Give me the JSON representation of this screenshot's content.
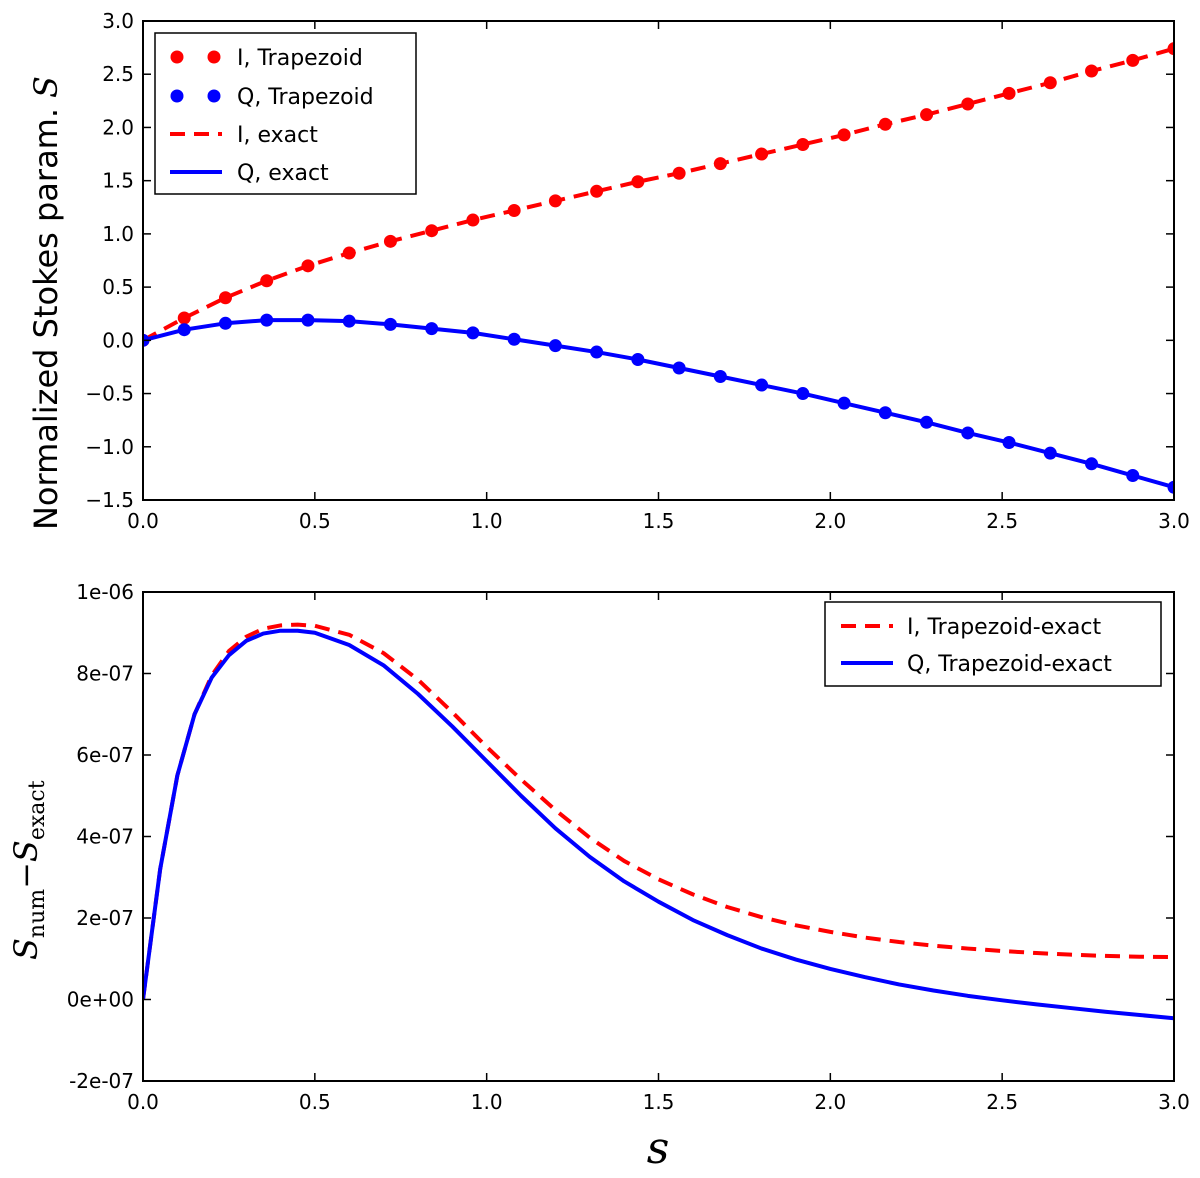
{
  "chart_data": [
    {
      "type": "line",
      "id": "top",
      "ylabel": "Normalized Stokes param. S",
      "ylabel_text": "Normalized Stokes param.",
      "ylabel_symbol": "S",
      "xlim": [
        0.0,
        3.0
      ],
      "ylim": [
        -1.5,
        3.0
      ],
      "x_ticks": [
        0.0,
        0.5,
        1.0,
        1.5,
        2.0,
        2.5,
        3.0
      ],
      "x_tick_labels": [
        "0.0",
        "0.5",
        "1.0",
        "1.5",
        "2.0",
        "2.5",
        "3.0"
      ],
      "y_ticks": [
        -1.5,
        -1.0,
        -0.5,
        0.0,
        0.5,
        1.0,
        1.5,
        2.0,
        2.5,
        3.0
      ],
      "y_tick_labels": [
        "−1.5",
        "−1.0",
        "−0.5",
        "0.0",
        "0.5",
        "1.0",
        "1.5",
        "2.0",
        "2.5",
        "3.0"
      ],
      "legend_position": "top-left",
      "series": [
        {
          "name": "I, Trapezoid",
          "style": "markers",
          "color": "#ff0000",
          "x": [
            0.0,
            0.12,
            0.24,
            0.36,
            0.48,
            0.6,
            0.72,
            0.84,
            0.96,
            1.08,
            1.2,
            1.32,
            1.44,
            1.56,
            1.68,
            1.8,
            1.92,
            2.04,
            2.16,
            2.28,
            2.4,
            2.52,
            2.64,
            2.76,
            2.88,
            3.0
          ],
          "values": [
            0.0,
            0.21,
            0.4,
            0.56,
            0.7,
            0.82,
            0.93,
            1.03,
            1.13,
            1.22,
            1.31,
            1.4,
            1.49,
            1.57,
            1.66,
            1.75,
            1.84,
            1.93,
            2.03,
            2.12,
            2.22,
            2.32,
            2.42,
            2.53,
            2.63,
            2.74
          ]
        },
        {
          "name": "Q, Trapezoid",
          "style": "markers",
          "color": "#0000ff",
          "x": [
            0.0,
            0.12,
            0.24,
            0.36,
            0.48,
            0.6,
            0.72,
            0.84,
            0.96,
            1.08,
            1.2,
            1.32,
            1.44,
            1.56,
            1.68,
            1.8,
            1.92,
            2.04,
            2.16,
            2.28,
            2.4,
            2.52,
            2.64,
            2.76,
            2.88,
            3.0
          ],
          "values": [
            0.0,
            0.1,
            0.16,
            0.19,
            0.19,
            0.18,
            0.15,
            0.11,
            0.07,
            0.01,
            -0.05,
            -0.11,
            -0.18,
            -0.26,
            -0.34,
            -0.42,
            -0.5,
            -0.59,
            -0.68,
            -0.77,
            -0.87,
            -0.96,
            -1.06,
            -1.16,
            -1.27,
            -1.38
          ]
        },
        {
          "name": "I, exact",
          "style": "dashed",
          "color": "#ff0000",
          "x": [
            0.0,
            0.12,
            0.24,
            0.36,
            0.48,
            0.6,
            0.72,
            0.84,
            0.96,
            1.08,
            1.2,
            1.32,
            1.44,
            1.56,
            1.68,
            1.8,
            1.92,
            2.04,
            2.16,
            2.28,
            2.4,
            2.52,
            2.64,
            2.76,
            2.88,
            3.0
          ],
          "values": [
            0.0,
            0.21,
            0.4,
            0.56,
            0.7,
            0.82,
            0.93,
            1.03,
            1.13,
            1.22,
            1.31,
            1.4,
            1.49,
            1.57,
            1.66,
            1.75,
            1.84,
            1.93,
            2.03,
            2.12,
            2.22,
            2.32,
            2.42,
            2.53,
            2.63,
            2.74
          ]
        },
        {
          "name": "Q, exact",
          "style": "solid",
          "color": "#0000ff",
          "x": [
            0.0,
            0.12,
            0.24,
            0.36,
            0.48,
            0.6,
            0.72,
            0.84,
            0.96,
            1.08,
            1.2,
            1.32,
            1.44,
            1.56,
            1.68,
            1.8,
            1.92,
            2.04,
            2.16,
            2.28,
            2.4,
            2.52,
            2.64,
            2.76,
            2.88,
            3.0
          ],
          "values": [
            0.0,
            0.1,
            0.16,
            0.19,
            0.19,
            0.18,
            0.15,
            0.11,
            0.07,
            0.01,
            -0.05,
            -0.11,
            -0.18,
            -0.26,
            -0.34,
            -0.42,
            -0.5,
            -0.59,
            -0.68,
            -0.77,
            -0.87,
            -0.96,
            -1.06,
            -1.16,
            -1.27,
            -1.38
          ]
        }
      ]
    },
    {
      "type": "line",
      "id": "bottom",
      "xlabel": "s",
      "ylabel_main": "S",
      "ylabel_sub1": "num",
      "ylabel_minus": "−",
      "ylabel_main2": "S",
      "ylabel_sub2": "exact",
      "xlim": [
        0.0,
        3.0
      ],
      "ylim": [
        -2e-07,
        1e-06
      ],
      "x_ticks": [
        0.0,
        0.5,
        1.0,
        1.5,
        2.0,
        2.5,
        3.0
      ],
      "x_tick_labels": [
        "0.0",
        "0.5",
        "1.0",
        "1.5",
        "2.0",
        "2.5",
        "3.0"
      ],
      "y_ticks": [
        -2e-07,
        0,
        2e-07,
        4e-07,
        6e-07,
        8e-07,
        1e-06
      ],
      "y_tick_labels": [
        "-2e-07",
        "0e+00",
        "2e-07",
        "4e-07",
        "6e-07",
        "8e-07",
        "1e-06"
      ],
      "legend_position": "top-right",
      "series": [
        {
          "name": "I, Trapezoid-exact",
          "style": "dashed",
          "color": "#ff0000",
          "x": [
            0.0,
            0.05,
            0.1,
            0.15,
            0.2,
            0.25,
            0.3,
            0.35,
            0.4,
            0.45,
            0.5,
            0.6,
            0.7,
            0.8,
            0.9,
            1.0,
            1.1,
            1.2,
            1.3,
            1.4,
            1.5,
            1.6,
            1.7,
            1.8,
            1.9,
            2.0,
            2.1,
            2.2,
            2.3,
            2.4,
            2.5,
            2.6,
            2.7,
            2.8,
            2.9,
            3.0
          ],
          "values": [
            0.0,
            3.2e-07,
            5.5e-07,
            7e-07,
            7.95e-07,
            8.55e-07,
            8.9e-07,
            9.1e-07,
            9.18e-07,
            9.2e-07,
            9.17e-07,
            8.95e-07,
            8.5e-07,
            7.85e-07,
            7.05e-07,
            6.2e-07,
            5.4e-07,
            4.65e-07,
            3.97e-07,
            3.4e-07,
            2.95e-07,
            2.58e-07,
            2.27e-07,
            2.02e-07,
            1.82e-07,
            1.66e-07,
            1.52e-07,
            1.41e-07,
            1.32e-07,
            1.25e-07,
            1.19e-07,
            1.14e-07,
            1.1e-07,
            1.07e-07,
            1.05e-07,
            1.04e-07
          ]
        },
        {
          "name": "Q, Trapezoid-exact",
          "style": "solid",
          "color": "#0000ff",
          "x": [
            0.0,
            0.05,
            0.1,
            0.15,
            0.2,
            0.25,
            0.3,
            0.35,
            0.4,
            0.45,
            0.5,
            0.6,
            0.7,
            0.8,
            0.9,
            1.0,
            1.1,
            1.2,
            1.3,
            1.4,
            1.5,
            1.6,
            1.7,
            1.8,
            1.9,
            2.0,
            2.1,
            2.2,
            2.3,
            2.4,
            2.5,
            2.6,
            2.7,
            2.8,
            2.9,
            3.0
          ],
          "values": [
            0.0,
            3.2e-07,
            5.5e-07,
            7e-07,
            7.9e-07,
            8.45e-07,
            8.8e-07,
            8.98e-07,
            9.05e-07,
            9.05e-07,
            9e-07,
            8.7e-07,
            8.2e-07,
            7.5e-07,
            6.7e-07,
            5.85e-07,
            5e-07,
            4.2e-07,
            3.5e-07,
            2.9e-07,
            2.4e-07,
            1.95e-07,
            1.58e-07,
            1.25e-07,
            9.8e-08,
            7.5e-08,
            5.5e-08,
            3.7e-08,
            2.2e-08,
            9e-09,
            -2e-09,
            -1.2e-08,
            -2.1e-08,
            -3e-08,
            -3.8e-08,
            -4.6e-08
          ]
        }
      ]
    }
  ]
}
